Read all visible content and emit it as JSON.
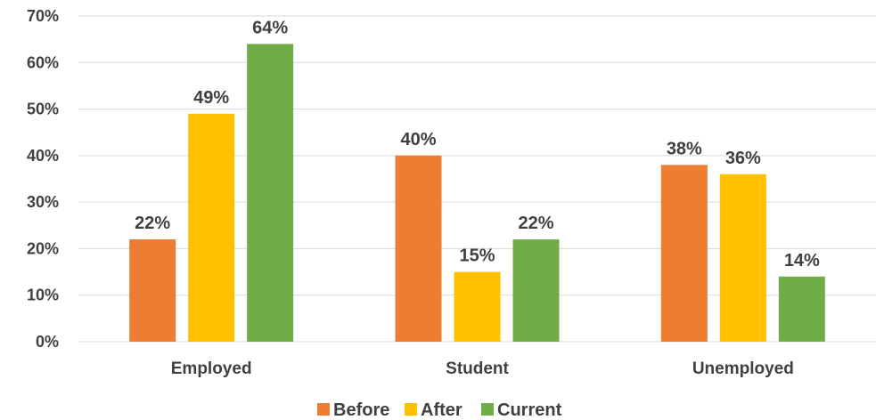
{
  "chart_data": {
    "type": "bar",
    "categories": [
      "Employed",
      "Student",
      "Unemployed"
    ],
    "series": [
      {
        "name": "Before",
        "values": [
          22,
          40,
          38
        ],
        "labels": [
          "22%",
          "40%",
          "38%"
        ],
        "color": "#ED7D31"
      },
      {
        "name": "After",
        "values": [
          49,
          15,
          36
        ],
        "labels": [
          "49%",
          "15%",
          "36%"
        ],
        "color": "#FFC000"
      },
      {
        "name": "Current",
        "values": [
          64,
          22,
          14
        ],
        "labels": [
          "64%",
          "22%",
          "14%"
        ],
        "color": "#70AD47"
      }
    ],
    "ylim": [
      0,
      70
    ],
    "yticks": [
      0,
      10,
      20,
      30,
      40,
      50,
      60,
      70
    ],
    "ytick_labels": [
      "0%",
      "10%",
      "20%",
      "30%",
      "40%",
      "50%",
      "60%",
      "70%"
    ],
    "grid": true,
    "gridline_color": "#D9D9D9",
    "legend_position": "bottom"
  }
}
